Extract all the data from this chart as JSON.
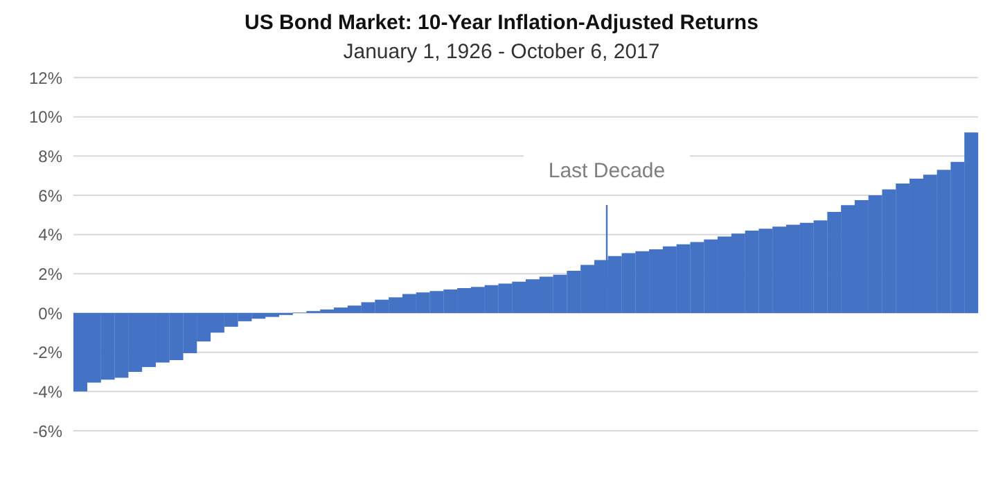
{
  "chart_data": {
    "type": "bar",
    "title": "US Bond Market: 10-Year Inflation-Adjusted Returns",
    "subtitle": "January  1, 1926 - October 6, 2017",
    "annotations": [
      "Last Decade"
    ],
    "categories": [
      null,
      null,
      null,
      null,
      null,
      null,
      null,
      null,
      null,
      null,
      null,
      null,
      null,
      null,
      null,
      null,
      null,
      null,
      null,
      null,
      null,
      null,
      null,
      null,
      null,
      null,
      null,
      null,
      null,
      null,
      null,
      null,
      null,
      null,
      null,
      null,
      null,
      null,
      null,
      null,
      null,
      null,
      null,
      null,
      null,
      null,
      null,
      null,
      null,
      null,
      null,
      null,
      null,
      null,
      null,
      null,
      null,
      null,
      null,
      null,
      null,
      null,
      null,
      null,
      null,
      null
    ],
    "values": [
      -4.0,
      -3.55,
      -3.4,
      -3.3,
      -3.0,
      -2.75,
      -2.52,
      -2.4,
      -2.05,
      -1.45,
      -1.0,
      -0.7,
      -0.42,
      -0.29,
      -0.2,
      -0.1,
      0.02,
      0.1,
      0.18,
      0.28,
      0.38,
      0.55,
      0.68,
      0.8,
      0.97,
      1.05,
      1.12,
      1.2,
      1.27,
      1.33,
      1.42,
      1.5,
      1.6,
      1.72,
      1.85,
      1.95,
      2.15,
      2.45,
      2.7,
      2.9,
      3.05,
      3.15,
      3.25,
      3.4,
      3.5,
      3.62,
      3.75,
      3.9,
      4.05,
      4.2,
      4.3,
      4.4,
      4.5,
      4.6,
      4.72,
      5.15,
      5.5,
      5.75,
      6.0,
      6.3,
      6.6,
      6.85,
      7.05,
      7.3,
      7.7,
      9.2
    ],
    "color": "#4472c4",
    "ylim": [
      -6,
      12
    ],
    "yticks": [
      {
        "value": -6,
        "label": "-6%"
      },
      {
        "value": -4,
        "label": "-4%"
      },
      {
        "value": -2,
        "label": "-2%"
      },
      {
        "value": 0,
        "label": "0%"
      },
      {
        "value": 2,
        "label": "2%"
      },
      {
        "value": 4,
        "label": "4%"
      },
      {
        "value": 6,
        "label": "6%"
      },
      {
        "value": 8,
        "label": "8%"
      },
      {
        "value": 10,
        "label": "10%"
      },
      {
        "value": 12,
        "label": "12%"
      }
    ],
    "grid": "y",
    "tick_labels": "y"
  }
}
